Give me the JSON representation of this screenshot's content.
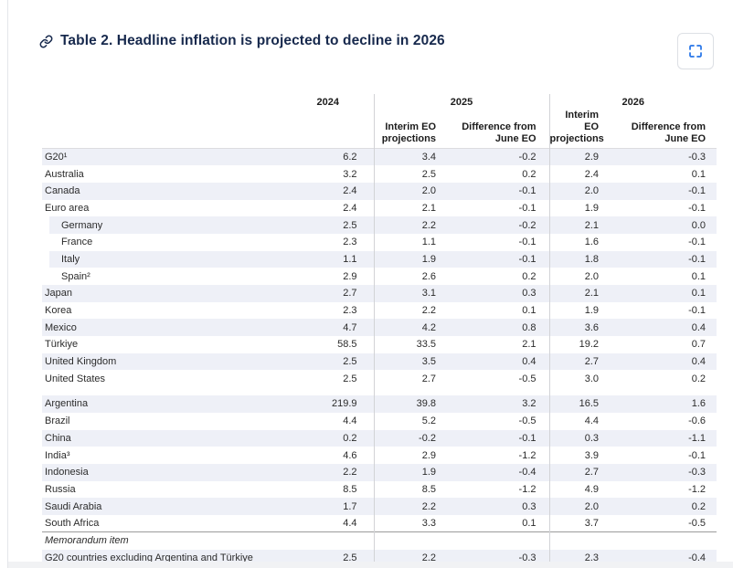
{
  "colors": {
    "navy": "#17294d",
    "blue": "#2574e8",
    "stripe": "#eef0f7",
    "border_soft": "#e4e6ea"
  },
  "header": {
    "title": "Table 2. Headline inflation is projected to decline in 2026",
    "link_icon": "link-icon",
    "expand_icon": "fullscreen-expand-icon"
  },
  "chart_data": {
    "type": "table",
    "title": "Table 2. Headline inflation is projected to decline in 2026",
    "columns": [
      "2024",
      "2025 Interim EO projections",
      "2025 Difference from June EO",
      "2026 Interim EO projections",
      "2026 Difference from June EO"
    ],
    "year_columns": [
      {
        "label": "2024"
      },
      {
        "label": "2025"
      },
      {
        "label": "2026"
      }
    ],
    "sub_columns": [
      {
        "line1": "Interim EO",
        "line2": "projections"
      },
      {
        "line1": "Difference from",
        "line2": "June EO"
      },
      {
        "line1": "Interim EO",
        "line2": "projections"
      },
      {
        "line1": "Difference from",
        "line2": "June EO"
      }
    ],
    "rows": [
      {
        "label": "G20¹",
        "indent": false,
        "striped": true,
        "values": [
          "6.2",
          "3.4",
          "-0.2",
          "2.9",
          "-0.3"
        ]
      },
      {
        "label": "Australia",
        "indent": false,
        "striped": false,
        "values": [
          "3.2",
          "2.5",
          "0.2",
          "2.4",
          "0.1"
        ]
      },
      {
        "label": "Canada",
        "indent": false,
        "striped": true,
        "values": [
          "2.4",
          "2.0",
          "-0.1",
          "2.0",
          "-0.1"
        ]
      },
      {
        "label": "Euro area",
        "indent": false,
        "striped": false,
        "values": [
          "2.4",
          "2.1",
          "-0.1",
          "1.9",
          "-0.1"
        ]
      },
      {
        "label": "Germany",
        "indent": true,
        "striped": true,
        "values": [
          "2.5",
          "2.2",
          "-0.2",
          "2.1",
          "0.0"
        ]
      },
      {
        "label": "France",
        "indent": true,
        "striped": false,
        "values": [
          "2.3",
          "1.1",
          "-0.1",
          "1.6",
          "-0.1"
        ]
      },
      {
        "label": "Italy",
        "indent": true,
        "striped": true,
        "values": [
          "1.1",
          "1.9",
          "-0.1",
          "1.8",
          "-0.1"
        ]
      },
      {
        "label": "Spain²",
        "indent": true,
        "striped": false,
        "values": [
          "2.9",
          "2.6",
          "0.2",
          "2.0",
          "0.1"
        ]
      },
      {
        "label": "Japan",
        "indent": false,
        "striped": true,
        "values": [
          "2.7",
          "3.1",
          "0.3",
          "2.1",
          "0.1"
        ]
      },
      {
        "label": "Korea",
        "indent": false,
        "striped": false,
        "values": [
          "2.3",
          "2.2",
          "0.1",
          "1.9",
          "-0.1"
        ]
      },
      {
        "label": "Mexico",
        "indent": false,
        "striped": true,
        "values": [
          "4.7",
          "4.2",
          "0.8",
          "3.6",
          "0.4"
        ]
      },
      {
        "label": "Türkiye",
        "indent": false,
        "striped": false,
        "values": [
          "58.5",
          "33.5",
          "2.1",
          "19.2",
          "0.7"
        ]
      },
      {
        "label": "United Kingdom",
        "indent": false,
        "striped": true,
        "values": [
          "2.5",
          "3.5",
          "0.4",
          "2.7",
          "0.4"
        ]
      },
      {
        "label": "United States",
        "indent": false,
        "striped": false,
        "values": [
          "2.5",
          "2.7",
          "-0.5",
          "3.0",
          "0.2"
        ]
      },
      {
        "type": "spacer"
      },
      {
        "label": "Argentina",
        "indent": false,
        "striped": true,
        "values": [
          "219.9",
          "39.8",
          "3.2",
          "16.5",
          "1.6"
        ]
      },
      {
        "label": "Brazil",
        "indent": false,
        "striped": false,
        "values": [
          "4.4",
          "5.2",
          "-0.5",
          "4.4",
          "-0.6"
        ]
      },
      {
        "label": "China",
        "indent": false,
        "striped": true,
        "values": [
          "0.2",
          "-0.2",
          "-0.1",
          "0.3",
          "-1.1"
        ]
      },
      {
        "label": "India³",
        "indent": false,
        "striped": false,
        "values": [
          "4.6",
          "2.9",
          "-1.2",
          "3.9",
          "-0.1"
        ]
      },
      {
        "label": "Indonesia",
        "indent": false,
        "striped": true,
        "values": [
          "2.2",
          "1.9",
          "-0.4",
          "2.7",
          "-0.3"
        ]
      },
      {
        "label": "Russia",
        "indent": false,
        "striped": false,
        "values": [
          "8.5",
          "8.5",
          "-1.2",
          "4.9",
          "-1.2"
        ]
      },
      {
        "label": "Saudi Arabia",
        "indent": false,
        "striped": true,
        "values": [
          "1.7",
          "2.2",
          "0.3",
          "2.0",
          "0.2"
        ]
      },
      {
        "label": "South Africa",
        "indent": false,
        "striped": false,
        "values": [
          "4.4",
          "3.3",
          "0.1",
          "3.7",
          "-0.5"
        ]
      },
      {
        "type": "memo",
        "label": "Memorandum item",
        "striped": false,
        "values": [
          "",
          "",
          "",
          "",
          ""
        ]
      },
      {
        "label": "G20 countries excluding Argentina and Türkiye",
        "indent": false,
        "striped": true,
        "values": [
          "2.5",
          "2.2",
          "-0.3",
          "2.3",
          "-0.4"
        ]
      }
    ]
  }
}
